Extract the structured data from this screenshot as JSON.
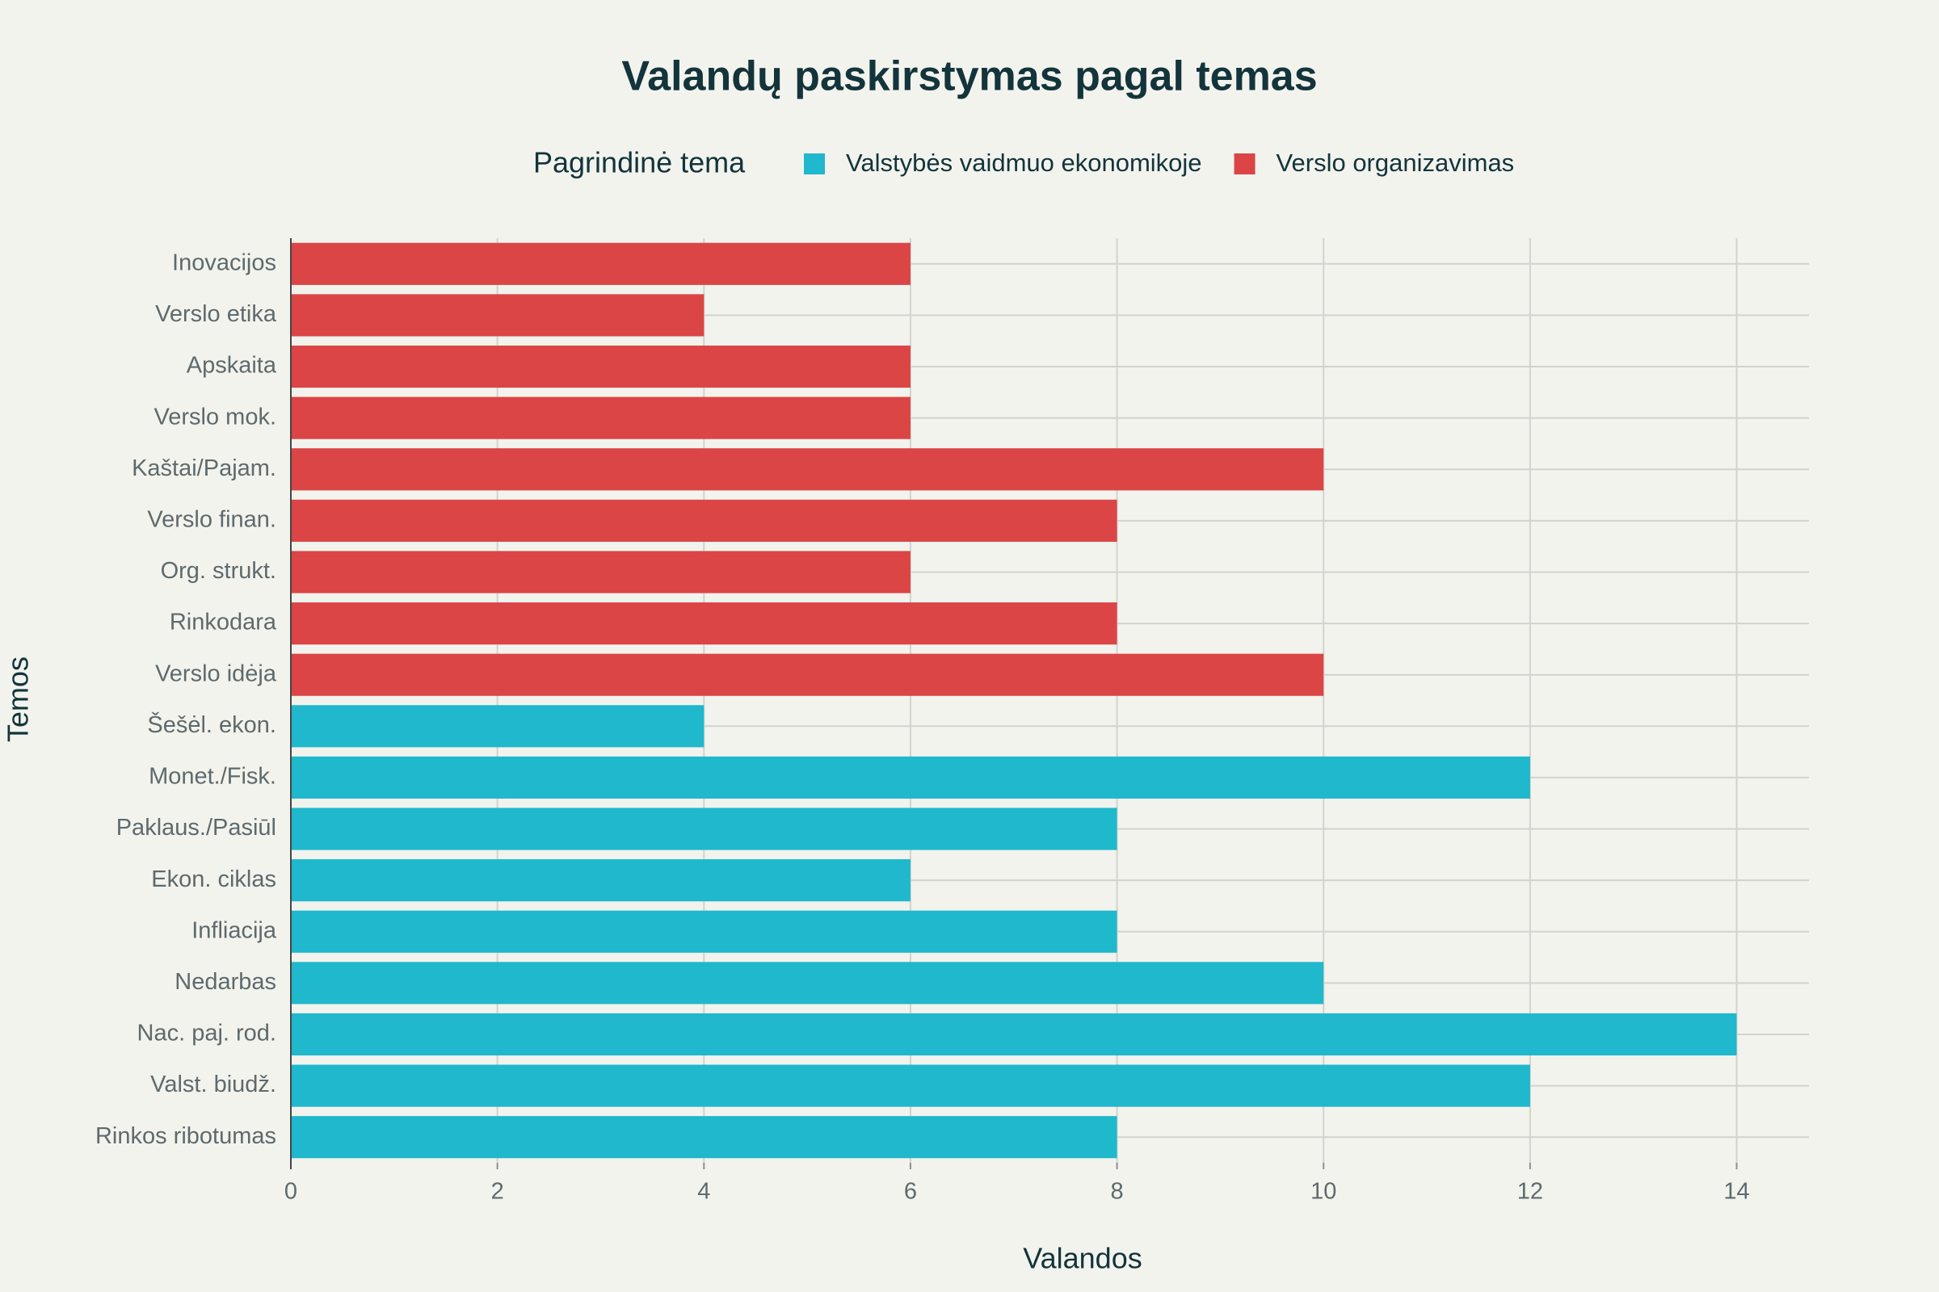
{
  "chart_data": {
    "type": "bar",
    "orientation": "horizontal",
    "title": "Valandų paskirstymas pagal temas",
    "x_label": "Valandos",
    "y_label": "Temos",
    "legend_title": "Pagrindinė tema",
    "legend_position": "top",
    "categories": [
      "Rinkos ribotumas",
      "Valst. biudž.",
      "Nac. paj. rod.",
      "Nedarbas",
      "Infliacija",
      "Ekon. ciklas",
      "Paklaus./Pasiūl",
      "Monet./Fisk.",
      "Šešėl. ekon.",
      "Verslo idėja",
      "Rinkodara",
      "Org. strukt.",
      "Verslo finan.",
      "Kaštai/Pajam.",
      "Verslo mok.",
      "Apskaita",
      "Verslo etika",
      "Inovacijos"
    ],
    "series": [
      {
        "name": "Valstybės vaidmuo ekonomikoje",
        "color": "#1FB8CD",
        "values": [
          8,
          12,
          14,
          10,
          8,
          6,
          8,
          12,
          4,
          null,
          null,
          null,
          null,
          null,
          null,
          null,
          null,
          null
        ]
      },
      {
        "name": "Verslo organizavimas",
        "color": "#DB4545",
        "values": [
          null,
          null,
          null,
          null,
          null,
          null,
          null,
          null,
          null,
          10,
          8,
          6,
          8,
          10,
          6,
          6,
          4,
          6
        ]
      }
    ],
    "xlim": [
      0,
      14.7
    ],
    "xticks": [
      0,
      2,
      4,
      6,
      8,
      10,
      12,
      14
    ],
    "grid": true
  }
}
